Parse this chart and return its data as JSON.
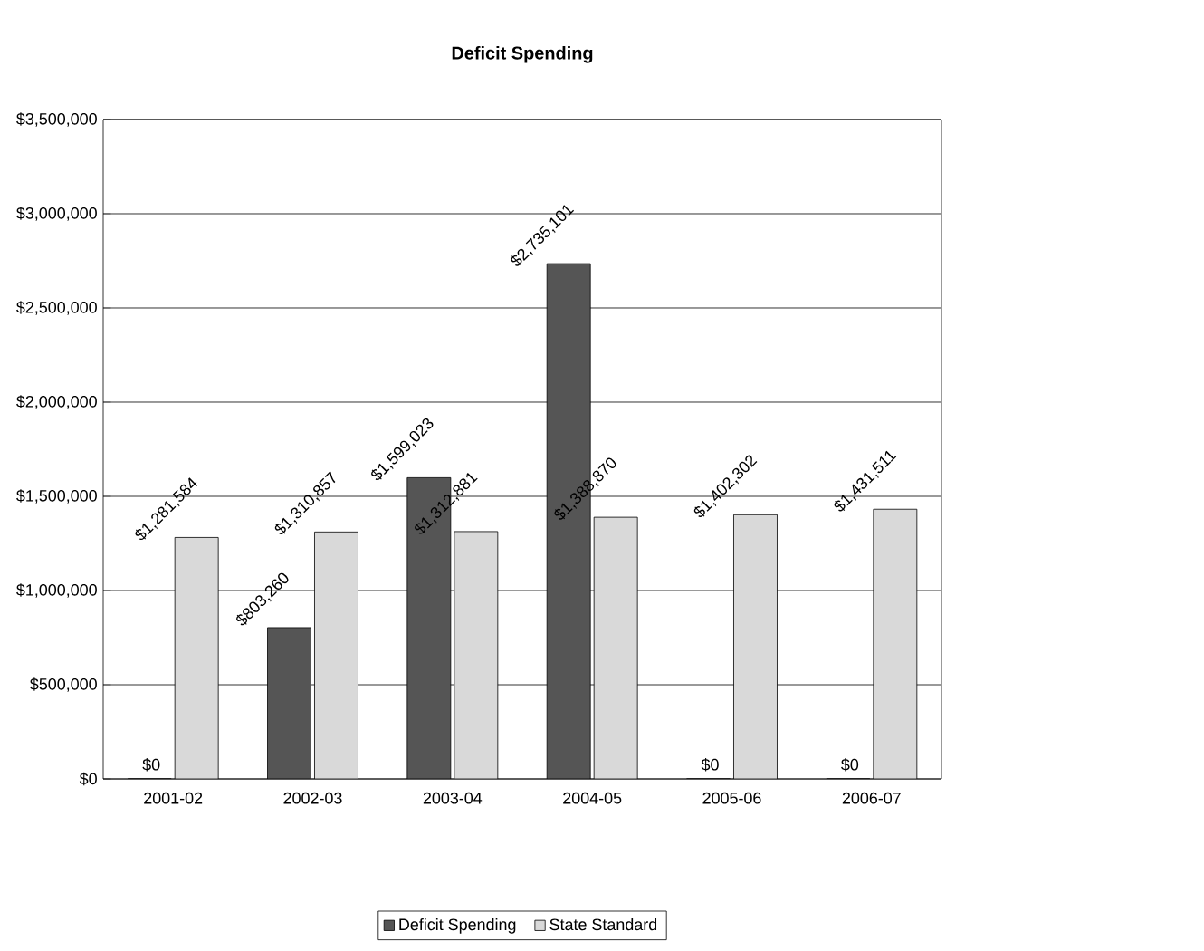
{
  "chart_data": {
    "type": "bar",
    "title": "Deficit Spending",
    "categories": [
      "2001-02",
      "2002-03",
      "2003-04",
      "2004-05",
      "2005-06",
      "2006-07"
    ],
    "series": [
      {
        "name": "Deficit Spending",
        "color": "#555555",
        "values": [
          0,
          803260,
          1599023,
          2735101,
          0,
          0
        ],
        "value_labels": [
          "$0",
          "$803,260",
          "$1,599,023",
          "$2,735,101",
          "$0",
          "$0"
        ]
      },
      {
        "name": "State Standard",
        "color": "#d9d9d9",
        "values": [
          1281584,
          1310857,
          1312881,
          1388870,
          1402302,
          1431511
        ],
        "value_labels": [
          "$1,281,584",
          "$1,310,857",
          "$1,312,881",
          "$1,388,870",
          "$1,402,302",
          "$1,431,511"
        ]
      }
    ],
    "ylim": [
      0,
      3500000
    ],
    "yticks": [
      {
        "value": 0,
        "label": "$0"
      },
      {
        "value": 500000,
        "label": "$500,000"
      },
      {
        "value": 1000000,
        "label": "$1,000,000"
      },
      {
        "value": 1500000,
        "label": "$1,500,000"
      },
      {
        "value": 2000000,
        "label": "$2,000,000"
      },
      {
        "value": 2500000,
        "label": "$2,500,000"
      },
      {
        "value": 3000000,
        "label": "$3,000,000"
      },
      {
        "value": 3500000,
        "label": "$3,500,000"
      }
    ],
    "grid": "y",
    "legend": "bottom"
  }
}
